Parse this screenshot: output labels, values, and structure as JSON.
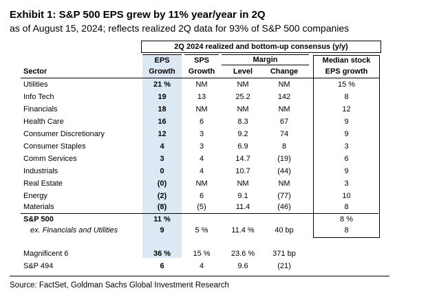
{
  "title": "Exhibit 1: S&P 500 EPS grew by 11% year/year in 2Q",
  "subtitle": "as of August 15, 2024; reflects realized 2Q data for 93% of S&P 500 companies",
  "consensus_header": "2Q 2024 realized and bottom-up consensus (y/y)",
  "headers": {
    "sector": "Sector",
    "eps_top": "EPS",
    "eps_bottom": "Growth",
    "sps_top": "SPS",
    "sps_bottom": "Growth",
    "margin_top": "Margin",
    "level": "Level",
    "change": "Change",
    "median_top": "Median stock",
    "median_bottom": "EPS growth"
  },
  "rows": [
    {
      "sector": "Utilities",
      "eps": "21 %",
      "sps": "NM",
      "level": "NM",
      "change": "NM",
      "median": "15 %"
    },
    {
      "sector": "Info Tech",
      "eps": "19",
      "sps": "13",
      "level": "25.2",
      "change": "142",
      "median": "8"
    },
    {
      "sector": "Financials",
      "eps": "18",
      "sps": "NM",
      "level": "NM",
      "change": "NM",
      "median": "12"
    },
    {
      "sector": "Health Care",
      "eps": "16",
      "sps": "6",
      "level": "8.3",
      "change": "67",
      "median": "9"
    },
    {
      "sector": "Consumer Discretionary",
      "eps": "12",
      "sps": "3",
      "level": "9.2",
      "change": "74",
      "median": "9"
    },
    {
      "sector": "Consumer Staples",
      "eps": "4",
      "sps": "3",
      "level": "6.9",
      "change": "8",
      "median": "3"
    },
    {
      "sector": "Comm Services",
      "eps": "3",
      "sps": "4",
      "level": "14.7",
      "change": "(19)",
      "median": "6"
    },
    {
      "sector": "Industrials",
      "eps": "0",
      "sps": "4",
      "level": "10.7",
      "change": "(44)",
      "median": "9"
    },
    {
      "sector": "Real Estate",
      "eps": "(0)",
      "sps": "NM",
      "level": "NM",
      "change": "NM",
      "median": "3"
    },
    {
      "sector": "Energy",
      "eps": "(2)",
      "sps": "6",
      "level": "9.1",
      "change": "(77)",
      "median": "10"
    },
    {
      "sector": "Materials",
      "eps": "(8)",
      "sps": "(5)",
      "level": "11.4",
      "change": "(46)",
      "median": "8"
    }
  ],
  "sp500": {
    "sector": "S&P 500",
    "eps": "11 %",
    "sps": "",
    "level": "",
    "change": "",
    "median": "8 %"
  },
  "ex_fin_util": {
    "sector": "ex. Financials and Utilities",
    "eps": "9",
    "sps": "5 %",
    "level": "11.4 %",
    "change": "40 bp",
    "median": "8"
  },
  "magnificent6": {
    "sector": "Magnificent 6",
    "eps": "36 %",
    "sps": "15 %",
    "level": "23.6 %",
    "change": "371 bp",
    "median": ""
  },
  "sp494": {
    "sector": "S&P 494",
    "eps": "6",
    "sps": "4",
    "level": "9.6",
    "change": "(21)",
    "median": ""
  },
  "source": "Source: FactSet, Goldman Sachs Global Investment Research"
}
